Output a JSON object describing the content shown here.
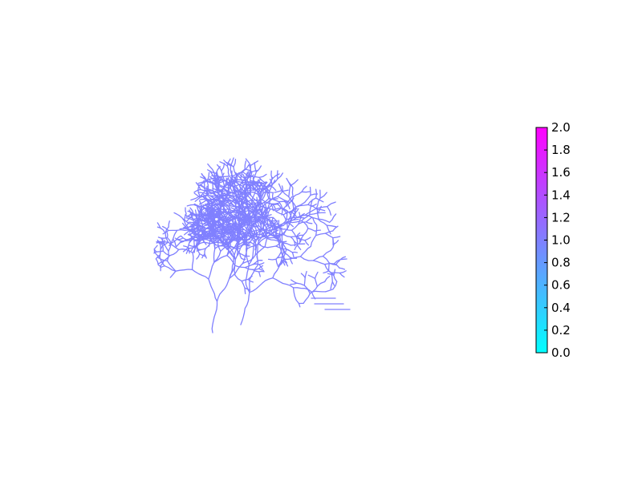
{
  "figure": {
    "background": "#ffffff"
  },
  "chart_data": {
    "type": "line",
    "title": "",
    "xlabel": "",
    "ylabel": "",
    "axes_visible": false,
    "grid": false,
    "plot": {
      "description_type": "branching line network (dendritic tree)",
      "line_color": "#8080ff",
      "colormap_value": 1.0
    },
    "colorbar": {
      "colormap": "cool",
      "colormap_colors": [
        "#00ffff",
        "#ff00ff"
      ],
      "range": [
        0.0,
        2.0
      ],
      "ticks": [
        0.0,
        0.2,
        0.4,
        0.6,
        0.8,
        1.0,
        1.2,
        1.4,
        1.6,
        1.8,
        2.0
      ],
      "tick_labels": [
        "0.0",
        "0.2",
        "0.4",
        "0.6",
        "0.8",
        "1.0",
        "1.2",
        "1.4",
        "1.6",
        "1.8",
        "2.0"
      ],
      "position": "right"
    }
  }
}
